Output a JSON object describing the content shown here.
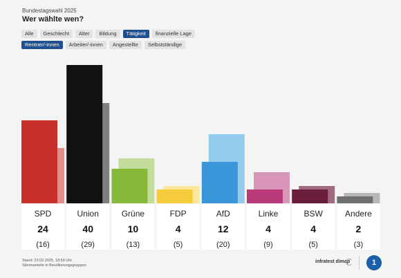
{
  "header": {
    "kicker": "Bundestagswahl 2025",
    "title": "Wer wählte wen?"
  },
  "filters": {
    "row1": [
      {
        "label": "Alle",
        "active": false
      },
      {
        "label": "Geschlecht",
        "active": false
      },
      {
        "label": "Alter",
        "active": false
      },
      {
        "label": "Bildung",
        "active": false
      },
      {
        "label": "Tätigkeit",
        "active": true
      },
      {
        "label": "finanzielle Lage",
        "active": false
      }
    ],
    "row2": [
      {
        "label": "Rentner/-innen",
        "active": true
      },
      {
        "label": "Arbeiter/-innen",
        "active": false
      },
      {
        "label": "Angestellte",
        "active": false
      },
      {
        "label": "Selbstständige",
        "active": false
      }
    ]
  },
  "chart_data": {
    "type": "bar",
    "categories": [
      "SPD",
      "Union",
      "Grüne",
      "FDP",
      "AfD",
      "Linke",
      "BSW",
      "Andere"
    ],
    "series": [
      {
        "values": [
          24,
          40,
          10,
          4,
          12,
          4,
          4,
          2
        ]
      },
      {
        "values": [
          16,
          29,
          13,
          5,
          20,
          9,
          5,
          3
        ]
      }
    ],
    "prev_labels": [
      "(16)",
      "(29)",
      "(13)",
      "(5)",
      "(20)",
      "(9)",
      "(5)",
      "(3)"
    ],
    "colors": [
      "#c8302b",
      "#111111",
      "#86b93a",
      "#f7cc3c",
      "#3a96d9",
      "#b83a78",
      "#6b1d3d",
      "#6f6f6f"
    ],
    "prev_colors": [
      "#e0908c",
      "#7f7f7f",
      "#c3dc9b",
      "#fbe89a",
      "#93cbee",
      "#d896b9",
      "#a06a80",
      "#b7b7b7"
    ],
    "ylim": [
      0,
      40
    ]
  },
  "footer": {
    "line1": "Stand: 23.02.2025, 18:59 Uhr",
    "line2": "Stimmanteile in Bevölkerungsgruppen",
    "brand": "infratest dimap",
    "logo": "1"
  }
}
